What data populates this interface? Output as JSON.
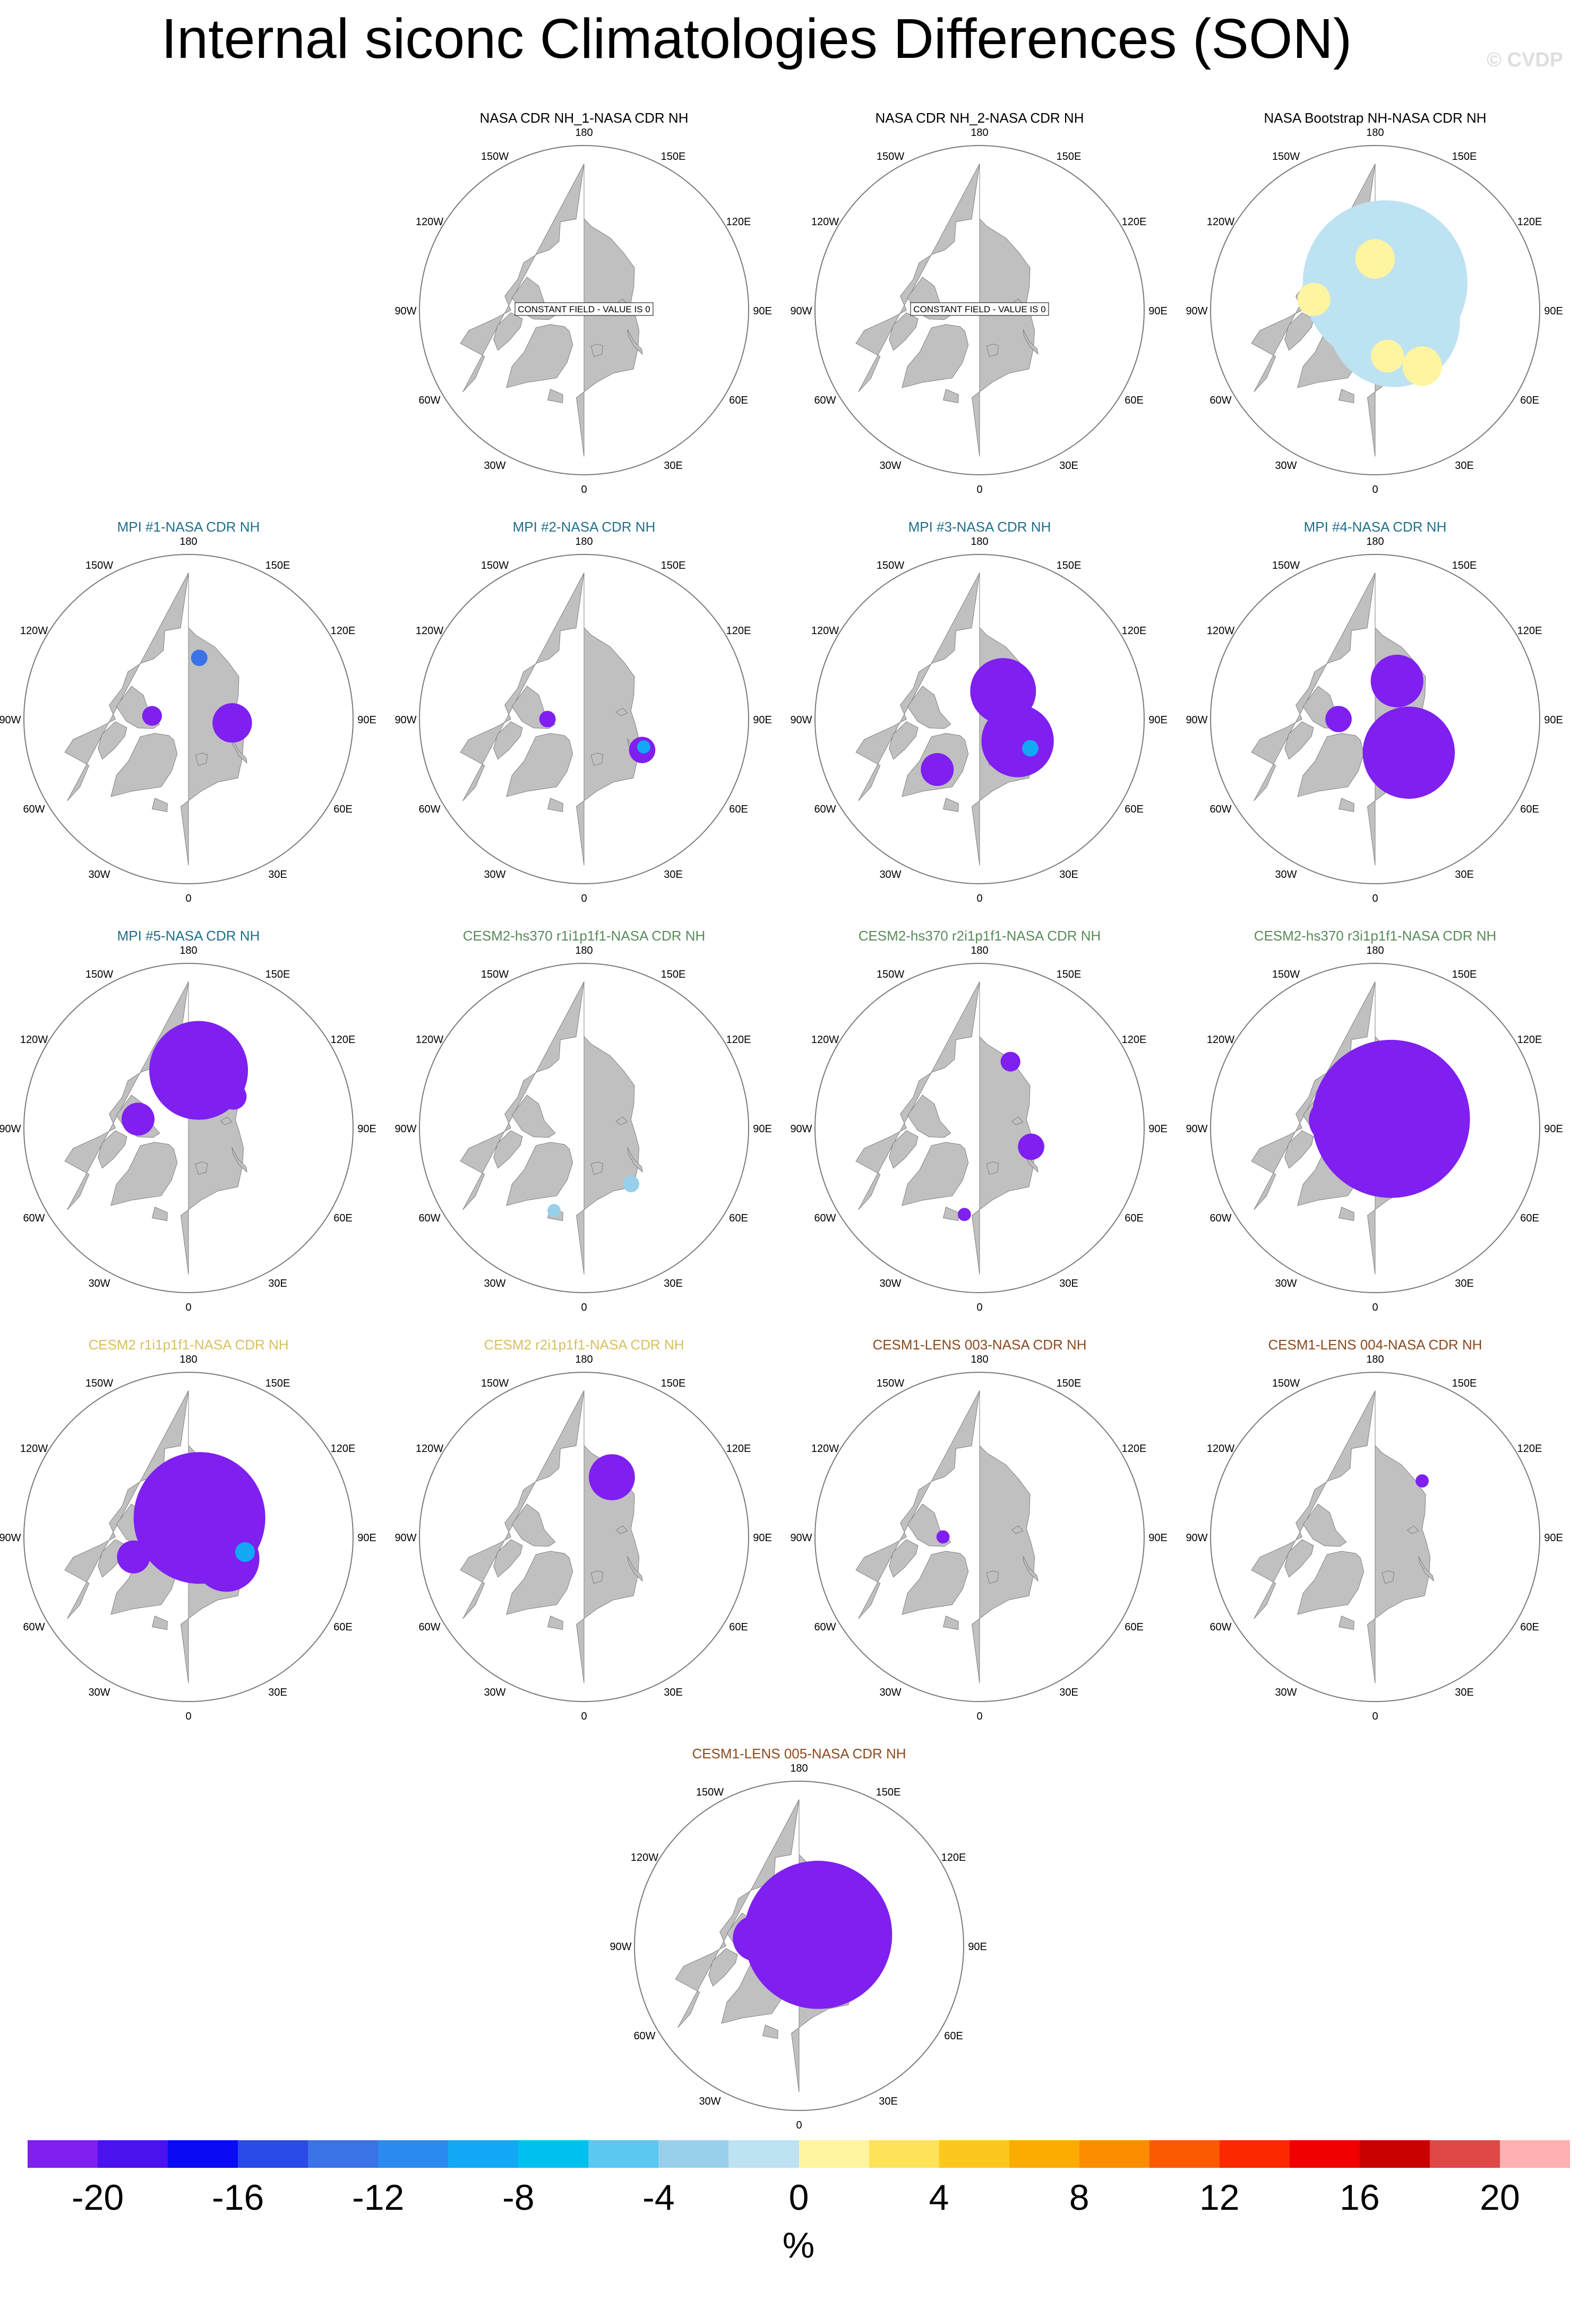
{
  "title": "Internal siconc Climatologies Differences (SON)",
  "watermark": "© CVDP",
  "colors": {
    "land": "#c0c0c0",
    "ocean": "#ffffff",
    "coast": "#808080",
    "rim": "#7a7a7a",
    "title_black": "#000000",
    "title_mpi": "#1f6f8b",
    "title_cesm2_hs370": "#5a8a5a",
    "title_cesm2": "#d8c060",
    "title_cesm1_lens": "#8b4a1f"
  },
  "grid_labels": {
    "top": "180",
    "bottom": "0",
    "left_upper": "150W",
    "right_upper": "150E",
    "left_mid_upper": "120W",
    "right_mid_upper": "120E",
    "left_mid": "90W",
    "right_mid": "90E",
    "left_mid_lower": "60W",
    "right_mid_lower": "60E",
    "left_lower": "30W",
    "right_lower": "30E"
  },
  "panels": [
    {
      "title": "NASA CDR NH_1-NASA CDR NH",
      "title_color": "#000000",
      "note": "CONSTANT FIELD - VALUE IS 0",
      "anomalies": []
    },
    {
      "title": "NASA CDR NH_2-NASA CDR NH",
      "title_color": "#000000",
      "note": "CONSTANT FIELD - VALUE IS 0",
      "anomalies": []
    },
    {
      "title": "NASA Bootstrap NH-NASA CDR NH",
      "title_color": "#000000",
      "note": "",
      "anomalies": [
        {
          "value": -1,
          "lat": 82,
          "lon": 160,
          "size": 0.5
        },
        {
          "value": -1,
          "lat": 84,
          "lon": 60,
          "size": 0.4
        },
        {
          "value": 1,
          "lat": 76,
          "lon": 180,
          "size": 0.12
        },
        {
          "value": 1,
          "lat": 77,
          "lon": 15,
          "size": 0.1
        },
        {
          "value": 1,
          "lat": 73,
          "lon": -100,
          "size": 0.1
        },
        {
          "value": 1,
          "lat": 70,
          "lon": 40,
          "size": 0.12
        }
      ]
    },
    {
      "title": "MPI #1-NASA CDR NH",
      "title_color": "#1f6f8b",
      "note": "",
      "anomalies": [
        {
          "value": -21,
          "lat": 78,
          "lon": 85,
          "size": 0.12
        },
        {
          "value": -21,
          "lat": 80,
          "lon": -95,
          "size": 0.06
        },
        {
          "value": -13,
          "lat": 73,
          "lon": 170,
          "size": 0.05
        }
      ]
    },
    {
      "title": "MPI #2-NASA CDR NH",
      "title_color": "#1f6f8b",
      "note": "",
      "anomalies": [
        {
          "value": -21,
          "lat": 72,
          "lon": 62,
          "size": 0.08
        },
        {
          "value": -9,
          "lat": 72,
          "lon": 65,
          "size": 0.04
        },
        {
          "value": -21,
          "lat": 80,
          "lon": -90,
          "size": 0.05
        }
      ]
    },
    {
      "title": "MPI #3-NASA CDR NH",
      "title_color": "#1f6f8b",
      "note": "",
      "anomalies": [
        {
          "value": -21,
          "lat": 80,
          "lon": 140,
          "size": 0.2
        },
        {
          "value": -21,
          "lat": 78,
          "lon": 60,
          "size": 0.22
        },
        {
          "value": -21,
          "lat": 72,
          "lon": -40,
          "size": 0.1
        },
        {
          "value": -9,
          "lat": 74,
          "lon": 60,
          "size": 0.05
        }
      ]
    },
    {
      "title": "MPI #4-NASA CDR NH",
      "title_color": "#1f6f8b",
      "note": "",
      "anomalies": [
        {
          "value": -21,
          "lat": 78,
          "lon": 150,
          "size": 0.16
        },
        {
          "value": -21,
          "lat": 77,
          "lon": 45,
          "size": 0.28
        },
        {
          "value": -21,
          "lat": 80,
          "lon": -90,
          "size": 0.08
        }
      ]
    },
    {
      "title": "MPI #5-NASA CDR NH",
      "title_color": "#1f6f8b",
      "note": "",
      "anomalies": [
        {
          "value": -21,
          "lat": 74,
          "lon": 170,
          "size": 0.3
        },
        {
          "value": -21,
          "lat": 76,
          "lon": -100,
          "size": 0.1
        },
        {
          "value": -21,
          "lat": 75,
          "lon": 125,
          "size": 0.08
        }
      ]
    },
    {
      "title": "CESM2-hs370 r1i1p1f1-NASA CDR NH",
      "title_color": "#5a8a5a",
      "note": "",
      "anomalies": [
        {
          "value": -3,
          "lat": 70,
          "lon": 40,
          "size": 0.05
        },
        {
          "value": -3,
          "lat": 66,
          "lon": -20,
          "size": 0.04
        }
      ]
    },
    {
      "title": "CESM2-hs370 r2i1p1f1-NASA CDR NH",
      "title_color": "#5a8a5a",
      "note": "",
      "anomalies": [
        {
          "value": -21,
          "lat": 75,
          "lon": 70,
          "size": 0.08
        },
        {
          "value": -21,
          "lat": 70,
          "lon": 155,
          "size": 0.06
        },
        {
          "value": -21,
          "lat": 66,
          "lon": -10,
          "size": 0.04
        }
      ]
    },
    {
      "title": "CESM2-hs370 r3i1p1f1-NASA CDR NH",
      "title_color": "#5a8a5a",
      "note": "",
      "anomalies": [
        {
          "value": -21,
          "lat": 85,
          "lon": 120,
          "size": 0.48
        },
        {
          "value": -21,
          "lat": 78,
          "lon": -100,
          "size": 0.14
        }
      ]
    },
    {
      "title": "CESM2 r1i1p1f1-NASA CDR NH",
      "title_color": "#d8c060",
      "note": "",
      "anomalies": [
        {
          "value": -21,
          "lat": 84,
          "lon": 150,
          "size": 0.4
        },
        {
          "value": -21,
          "lat": 78,
          "lon": 60,
          "size": 0.2
        },
        {
          "value": -21,
          "lat": 74,
          "lon": -70,
          "size": 0.1
        },
        {
          "value": -9,
          "lat": 74,
          "lon": 75,
          "size": 0.06
        }
      ]
    },
    {
      "title": "CESM2 r2i1p1f1-NASA CDR NH",
      "title_color": "#d8c060",
      "note": "",
      "anomalies": [
        {
          "value": -21,
          "lat": 72,
          "lon": 155,
          "size": 0.14
        }
      ]
    },
    {
      "title": "CESM1-LENS 003-NASA CDR NH",
      "title_color": "#8b4a1f",
      "note": "",
      "anomalies": [
        {
          "value": -21,
          "lat": 80,
          "lon": -90,
          "size": 0.04
        }
      ]
    },
    {
      "title": "CESM1-LENS 004-NASA CDR NH",
      "title_color": "#8b4a1f",
      "note": "",
      "anomalies": [
        {
          "value": -21,
          "lat": 70,
          "lon": 140,
          "size": 0.04
        }
      ]
    },
    {
      "title": "CESM1-LENS 005-NASA CDR NH",
      "title_color": "#8b4a1f",
      "note": "",
      "anomalies": [
        {
          "value": -21,
          "lat": 84,
          "lon": 120,
          "size": 0.45
        },
        {
          "value": -21,
          "lat": 78,
          "lon": -100,
          "size": 0.14
        }
      ]
    }
  ],
  "colorbar": {
    "colors": [
      "#7f1ff0",
      "#4a12ef",
      "#0a0af5",
      "#2a4ae8",
      "#3a72e8",
      "#2a8af0",
      "#12a8f5",
      "#00c0f0",
      "#5ac8f0",
      "#98d0ec",
      "#bde2f2",
      "#fff5a0",
      "#fde25a",
      "#fcc81e",
      "#fcac00",
      "#fc8c00",
      "#fc5a00",
      "#fc2800",
      "#f00000",
      "#c80000",
      "#e04848",
      "#ffb0b0"
    ],
    "tick_labels": [
      "-20",
      "-16",
      "-12",
      "-8",
      "-4",
      "0",
      "4",
      "8",
      "12",
      "16",
      "20"
    ],
    "unit": "%"
  }
}
